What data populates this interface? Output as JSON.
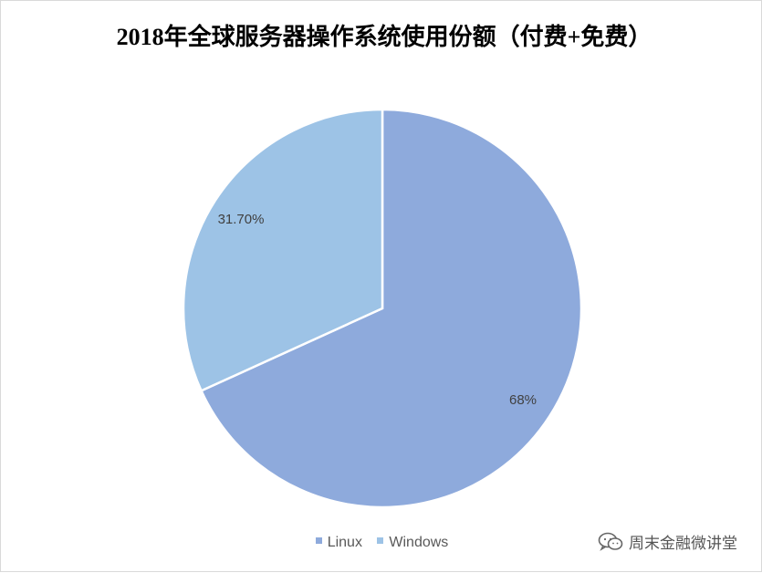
{
  "chart_data": {
    "type": "pie",
    "title": "2018年全球服务器操作系统使用份额（付费+免费）",
    "slices": [
      {
        "name": "Linux",
        "value": 68,
        "label": "68%",
        "color": "#8eaadc"
      },
      {
        "name": "Windows",
        "value": 31.7,
        "label": "31.70%",
        "color": "#9dc3e6"
      }
    ],
    "legend_position": "bottom",
    "start_angle_deg": 0,
    "direction": "clockwise"
  },
  "watermark": {
    "text": "周末金融微讲堂",
    "icon": "wechat-icon"
  }
}
